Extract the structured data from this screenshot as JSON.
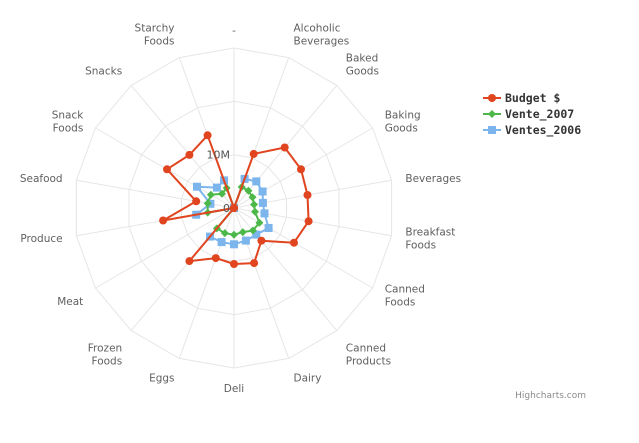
{
  "chart_data": {
    "type": "line",
    "polar": true,
    "title": "",
    "categories": [
      "-",
      "Alcoholic Beverages",
      "Baked Goods",
      "Baking Goods",
      "Beverages",
      "Breakfast Foods",
      "Canned Foods",
      "Canned Products",
      "Dairy",
      "Deli",
      "Eggs",
      "Frozen Foods",
      "Meat",
      "Produce",
      "Seafood",
      "Snack Foods",
      "Snacks",
      "Starchy Foods"
    ],
    "radial_axis": {
      "min": 0,
      "max": 30,
      "ticks": [
        0,
        10,
        20
      ],
      "tick_labels": [
        "0",
        "10M",
        ""
      ]
    },
    "series": [
      {
        "name": "Budget $",
        "color": "#e0451f",
        "marker": "circle",
        "values": [
          0,
          10.8,
          14.8,
          14.5,
          14.0,
          14.2,
          13.0,
          8.0,
          11.0,
          10.5,
          10.0,
          13.0,
          0,
          13.5,
          7.2,
          14.5,
          13.0,
          14.5
        ]
      },
      {
        "name": "Vente_2007",
        "color": "#4db84a",
        "marker": "diamond",
        "values": [
          0,
          4.2,
          4.2,
          4.0,
          3.8,
          4.0,
          5.5,
          5.5,
          4.8,
          5.0,
          5.0,
          5.0,
          0,
          5.0,
          5.0,
          5.0,
          3.5,
          4.0
        ]
      },
      {
        "name": "Ventes_2006",
        "color": "#7cb5ec",
        "marker": "square",
        "values": [
          0,
          5.8,
          6.5,
          6.2,
          5.5,
          5.8,
          7.5,
          6.5,
          6.5,
          6.8,
          6.8,
          7.0,
          0,
          7.2,
          4.5,
          8.0,
          5.0,
          5.5
        ]
      }
    ],
    "legend_position": "top-right"
  },
  "credits": "Highcharts.com"
}
